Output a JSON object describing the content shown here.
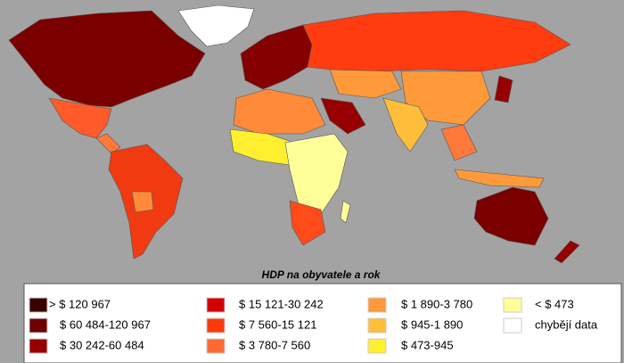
{
  "title": "HDP na obyvatele a rok",
  "legend": [
    {
      "label": "> $ 120 967",
      "color": "#3a0000"
    },
    {
      "label": "$ 60 484-120 967",
      "color": "#6e0000"
    },
    {
      "label": "$ 30 242-60 484",
      "color": "#960000"
    },
    {
      "label": "$ 15 121-30 242",
      "color": "#d40000"
    },
    {
      "label": "$ 7 560-15 121",
      "color": "#ff3a0a"
    },
    {
      "label": "$ 3 780-7 560",
      "color": "#ff6a33"
    },
    {
      "label": "$ 1 890-3 780",
      "color": "#ff9a3a"
    },
    {
      "label": "$ 945-1 890",
      "color": "#ffbe3a"
    },
    {
      "label": "$ 473-945",
      "color": "#ffef2e"
    },
    {
      "label": "< $ 473",
      "color": "#ffff99"
    },
    {
      "label": "chybějí data",
      "color": "#ffffff"
    }
  ]
}
